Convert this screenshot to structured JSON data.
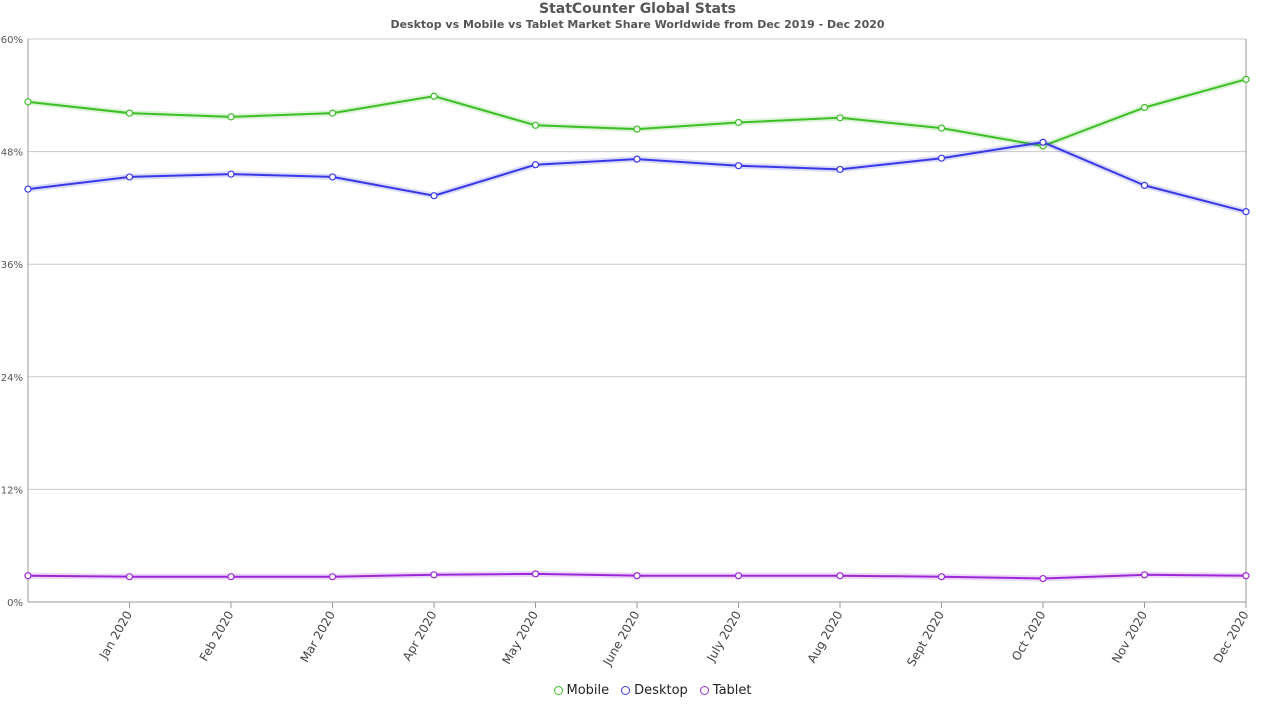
{
  "chart_data": {
    "type": "line",
    "title": "StatCounter Global Stats",
    "subtitle": "Desktop vs Mobile vs Tablet Market Share Worldwide from Dec 2019 - Dec 2020",
    "xlabel": "",
    "ylabel": "",
    "categories": [
      "Dec 2019",
      "Jan 2020",
      "Feb 2020",
      "Mar 2020",
      "Apr 2020",
      "May 2020",
      "June 2020",
      "July 2020",
      "Aug 2020",
      "Sept 2020",
      "Oct 2020",
      "Nov 2020",
      "Dec 2020"
    ],
    "x_tick_labels": [
      "Jan 2020",
      "Feb 2020",
      "Mar 2020",
      "Apr 2020",
      "May 2020",
      "June 2020",
      "July 2020",
      "Aug 2020",
      "Sept 2020",
      "Oct 2020",
      "Nov 2020",
      "Dec 2020"
    ],
    "y_ticks": [
      "0%",
      "12%",
      "24%",
      "36%",
      "48%",
      "60%"
    ],
    "ylim": [
      0,
      60
    ],
    "grid": true,
    "legend_position": "bottom-center",
    "series": [
      {
        "name": "Mobile",
        "color": "#3cbf25",
        "values": [
          53.3,
          52.1,
          51.7,
          52.1,
          53.9,
          50.8,
          50.4,
          51.1,
          51.6,
          50.5,
          48.6,
          52.7,
          55.7
        ]
      },
      {
        "name": "Desktop",
        "color": "#3838e8",
        "values": [
          44.0,
          45.3,
          45.6,
          45.3,
          43.3,
          46.6,
          47.2,
          46.5,
          46.1,
          47.3,
          49.0,
          44.4,
          41.6
        ]
      },
      {
        "name": "Tablet",
        "color": "#9c27d8",
        "values": [
          2.8,
          2.7,
          2.7,
          2.7,
          2.9,
          3.0,
          2.8,
          2.8,
          2.8,
          2.7,
          2.5,
          2.9,
          2.8
        ]
      }
    ]
  }
}
